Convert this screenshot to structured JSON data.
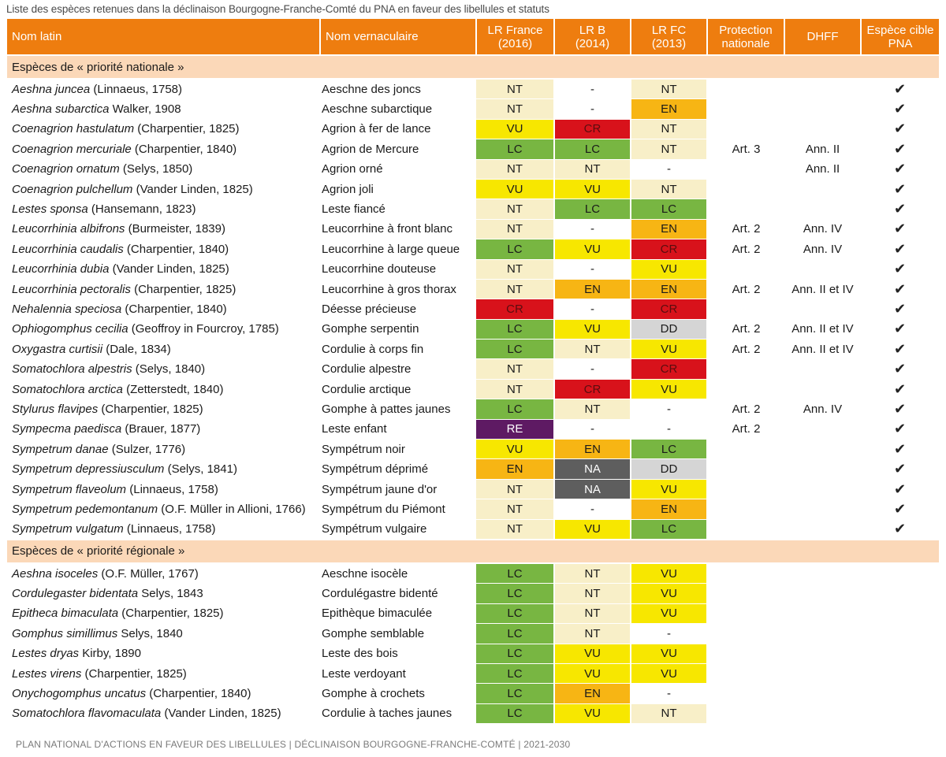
{
  "caption": "Liste des espèces retenues dans la déclinaison Bourgogne-Franche-Comté du PNA en faveur des libellules et statuts",
  "headers": {
    "latin": "Nom latin",
    "vern": "Nom vernaculaire",
    "lrf_1": "LR France",
    "lrf_2": "(2016)",
    "lrb_1": "LR B",
    "lrb_2": "(2014)",
    "lrfc_1": "LR FC",
    "lrfc_2": "(2013)",
    "prot_1": "Protection",
    "prot_2": "nationale",
    "dhff": "DHFF",
    "cible_1": "Espèce cible",
    "cible_2": "PNA"
  },
  "sections": [
    {
      "title": "Espèces de « priorité nationale »",
      "rows": [
        {
          "genus": "Aeshna juncea",
          "author": " (Linnaeus, 1758)",
          "vern": "Aeschne des joncs",
          "lrf": "NT",
          "lrb": "-",
          "lrfc": "NT",
          "prot": "",
          "dhff": "",
          "cible": "✔"
        },
        {
          "genus": "Aeshna subarctica",
          "author": " Walker, 1908",
          "vern": "Aeschne subarctique",
          "lrf": "NT",
          "lrb": "-",
          "lrfc": "EN",
          "prot": "",
          "dhff": "",
          "cible": "✔"
        },
        {
          "genus": "Coenagrion hastulatum",
          "author": " (Charpentier, 1825)",
          "vern": "Agrion à fer de lance",
          "lrf": "VU",
          "lrb": "CR",
          "lrfc": "NT",
          "prot": "",
          "dhff": "",
          "cible": "✔"
        },
        {
          "genus": "Coenagrion mercuriale",
          "author": " (Charpentier, 1840)",
          "vern": "Agrion de Mercure",
          "lrf": "LC",
          "lrb": "LC",
          "lrfc": "NT",
          "prot": "Art. 3",
          "dhff": "Ann. II",
          "cible": "✔"
        },
        {
          "genus": "Coenagrion ornatum",
          "author": " (Selys, 1850)",
          "vern": "Agrion orné",
          "lrf": "NT",
          "lrb": "NT",
          "lrfc": "-",
          "prot": "",
          "dhff": "Ann. II",
          "cible": "✔"
        },
        {
          "genus": "Coenagrion pulchellum",
          "author": " (Vander Linden, 1825)",
          "vern": "Agrion joli",
          "lrf": "VU",
          "lrb": "VU",
          "lrfc": "NT",
          "prot": "",
          "dhff": "",
          "cible": "✔"
        },
        {
          "genus": "Lestes sponsa",
          "author": " (Hansemann, 1823)",
          "vern": "Leste fiancé",
          "lrf": "NT",
          "lrb": "LC",
          "lrfc": "LC",
          "prot": "",
          "dhff": "",
          "cible": "✔"
        },
        {
          "genus": "Leucorrhinia albifrons",
          "author": " (Burmeister, 1839)",
          "vern": "Leucorrhine à front blanc",
          "lrf": "NT",
          "lrb": "-",
          "lrfc": "EN",
          "prot": "Art. 2",
          "dhff": "Ann. IV",
          "cible": "✔"
        },
        {
          "genus": "Leucorrhinia caudalis",
          "author": " (Charpentier, 1840)",
          "vern": "Leucorrhine à large queue",
          "lrf": "LC",
          "lrb": "VU",
          "lrfc": "CR",
          "prot": "Art. 2",
          "dhff": "Ann. IV",
          "cible": "✔"
        },
        {
          "genus": "Leucorrhinia dubia",
          "author": " (Vander Linden, 1825)",
          "vern": "Leucorrhine douteuse",
          "lrf": "NT",
          "lrb": "-",
          "lrfc": "VU",
          "prot": "",
          "dhff": "",
          "cible": "✔"
        },
        {
          "genus": "Leucorrhinia pectoralis",
          "author": " (Charpentier, 1825)",
          "vern": "Leucorrhine à gros thorax",
          "lrf": "NT",
          "lrb": "EN",
          "lrfc": "EN",
          "prot": "Art. 2",
          "dhff": "Ann. II et IV",
          "cible": "✔"
        },
        {
          "genus": "Nehalennia speciosa",
          "author": " (Charpentier, 1840)",
          "vern": "Déesse précieuse",
          "lrf": "CR",
          "lrb": "-",
          "lrfc": "CR",
          "prot": "",
          "dhff": "",
          "cible": "✔"
        },
        {
          "genus": "Ophiogomphus cecilia",
          "author": " (Geoffroy in Fourcroy, 1785)",
          "vern": "Gomphe serpentin",
          "lrf": "LC",
          "lrb": "VU",
          "lrfc": "DD",
          "prot": "Art. 2",
          "dhff": "Ann. II et IV",
          "cible": "✔"
        },
        {
          "genus": "Oxygastra curtisii",
          "author": " (Dale, 1834)",
          "vern": "Cordulie à corps fin",
          "lrf": "LC",
          "lrb": "NT",
          "lrfc": "VU",
          "prot": "Art. 2",
          "dhff": "Ann. II et IV",
          "cible": "✔"
        },
        {
          "genus": "Somatochlora alpestris",
          "author": " (Selys, 1840)",
          "vern": "Cordulie alpestre",
          "lrf": "NT",
          "lrb": "-",
          "lrfc": "CR",
          "prot": "",
          "dhff": "",
          "cible": "✔"
        },
        {
          "genus": "Somatochlora arctica",
          "author": " (Zetterstedt, 1840)",
          "vern": "Cordulie arctique",
          "lrf": "NT",
          "lrb": "CR",
          "lrfc": "VU",
          "prot": "",
          "dhff": "",
          "cible": "✔"
        },
        {
          "genus": "Stylurus flavipes",
          "author": " (Charpentier, 1825)",
          "vern": "Gomphe à pattes jaunes",
          "lrf": "LC",
          "lrb": "NT",
          "lrfc": "-",
          "prot": "Art. 2",
          "dhff": "Ann. IV",
          "cible": "✔"
        },
        {
          "genus": "Sympecma paedisca",
          "author": " (Brauer, 1877)",
          "vern": "Leste enfant",
          "lrf": "RE",
          "lrb": "-",
          "lrfc": "-",
          "prot": "Art. 2",
          "dhff": "",
          "cible": "✔"
        },
        {
          "genus": "Sympetrum danae",
          "author": " (Sulzer, 1776)",
          "vern": "Sympétrum noir",
          "lrf": "VU",
          "lrb": "EN",
          "lrfc": "LC",
          "prot": "",
          "dhff": "",
          "cible": "✔"
        },
        {
          "genus": "Sympetrum depressiusculum",
          "author": " (Selys, 1841)",
          "vern": "Sympétrum déprimé",
          "lrf": "EN",
          "lrb": "NA",
          "lrfc": "DD",
          "prot": "",
          "dhff": "",
          "cible": "✔"
        },
        {
          "genus": "Sympetrum flaveolum",
          "author": " (Linnaeus, 1758)",
          "vern": "Sympétrum jaune d'or",
          "lrf": "NT",
          "lrb": "NA",
          "lrfc": "VU",
          "prot": "",
          "dhff": "",
          "cible": "✔"
        },
        {
          "genus": "Sympetrum pedemontanum",
          "author": " (O.F. Müller in Allioni, 1766)",
          "vern": "Sympétrum du Piémont",
          "lrf": "NT",
          "lrb": "-",
          "lrfc": "EN",
          "prot": "",
          "dhff": "",
          "cible": "✔"
        },
        {
          "genus": "Sympetrum vulgatum",
          "author": " (Linnaeus, 1758)",
          "vern": "Sympétrum vulgaire",
          "lrf": "NT",
          "lrb": "VU",
          "lrfc": "LC",
          "prot": "",
          "dhff": "",
          "cible": "✔"
        }
      ]
    },
    {
      "title": "Espèces de « priorité régionale »",
      "rows": [
        {
          "genus": "Aeshna isoceles",
          "author": " (O.F. Müller, 1767)",
          "vern": "Aeschne isocèle",
          "lrf": "LC",
          "lrb": "NT",
          "lrfc": "VU",
          "prot": "",
          "dhff": "",
          "cible": ""
        },
        {
          "genus": "Cordulegaster bidentata",
          "author": " Selys, 1843",
          "vern": "Cordulégastre bidenté",
          "lrf": "LC",
          "lrb": "NT",
          "lrfc": "VU",
          "prot": "",
          "dhff": "",
          "cible": ""
        },
        {
          "genus": "Epitheca bimaculata",
          "author": " (Charpentier, 1825)",
          "vern": "Epithèque bimaculée",
          "lrf": "LC",
          "lrb": "NT",
          "lrfc": "VU",
          "prot": "",
          "dhff": "",
          "cible": ""
        },
        {
          "genus": "Gomphus simillimus",
          "author": " Selys, 1840",
          "vern": "Gomphe semblable",
          "lrf": "LC",
          "lrb": "NT",
          "lrfc": "-",
          "prot": "",
          "dhff": "",
          "cible": ""
        },
        {
          "genus": "Lestes dryas",
          "author": " Kirby, 1890",
          "vern": "Leste des bois",
          "lrf": "LC",
          "lrb": "VU",
          "lrfc": "VU",
          "prot": "",
          "dhff": "",
          "cible": ""
        },
        {
          "genus": "Lestes virens",
          "author": " (Charpentier, 1825)",
          "vern": "Leste verdoyant",
          "lrf": "LC",
          "lrb": "VU",
          "lrfc": "VU",
          "prot": "",
          "dhff": "",
          "cible": ""
        },
        {
          "genus": "Onychogomphus uncatus",
          "author": " (Charpentier, 1840)",
          "vern": "Gomphe à crochets",
          "lrf": "LC",
          "lrb": "EN",
          "lrfc": "-",
          "prot": "",
          "dhff": "",
          "cible": ""
        },
        {
          "genus": "Somatochlora flavomaculata",
          "author": " (Vander Linden, 1825)",
          "vern": "Cordulie à taches jaunes",
          "lrf": "LC",
          "lrb": "VU",
          "lrfc": "NT",
          "prot": "",
          "dhff": "",
          "cible": ""
        }
      ]
    }
  ],
  "status_colors": {
    "LC": "#78b642",
    "NT": "#f8efc8",
    "VU": "#f7e700",
    "EN": "#f7b514",
    "CR": "#d8121b",
    "RE": "#5e1a63",
    "DD": "#d5d5d5",
    "NA": "#5e5e5e"
  },
  "accent_color": "#ee7d0f",
  "footer": "PLAN NATIONAL D'ACTIONS EN FAVEUR DES LIBELLULES | DÉCLINAISON BOURGOGNE-FRANCHE-COMTÉ | 2021-2030"
}
